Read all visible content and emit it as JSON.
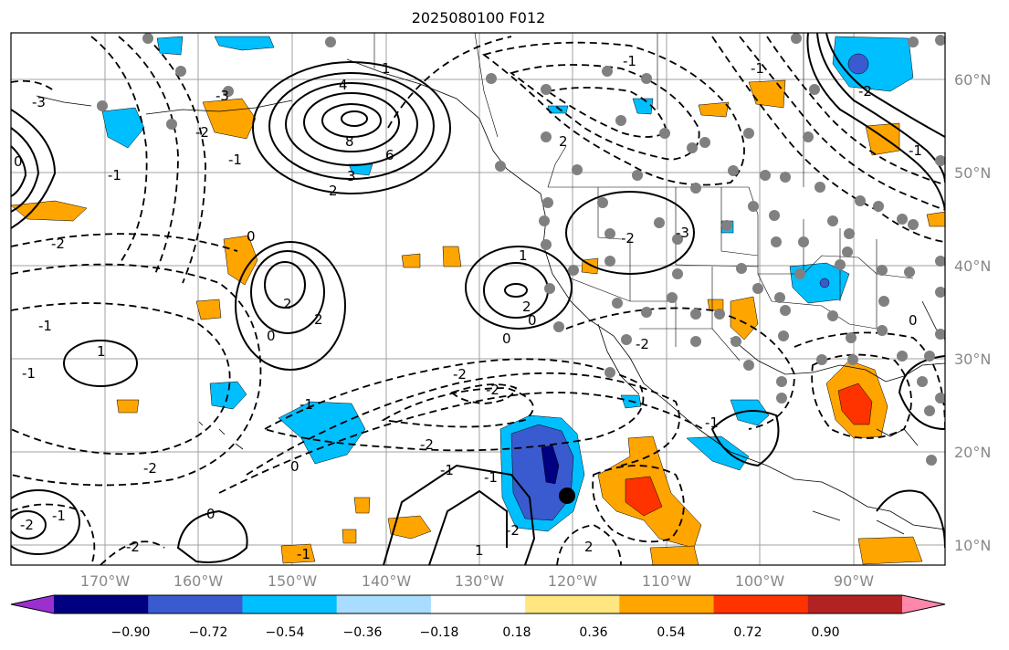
{
  "title": "2025080100 F012",
  "longitude_labels": [
    "170°W",
    "160°W",
    "150°W",
    "140°W",
    "130°W",
    "120°W",
    "110°W",
    "100°W",
    "90°W"
  ],
  "latitude_labels": [
    "60°N",
    "50°N",
    "40°N",
    "30°N",
    "20°N",
    "10°N"
  ],
  "colorbar": {
    "tick_labels": [
      "−0.90",
      "−0.72",
      "−0.54",
      "−0.36",
      "−0.18",
      "0.18",
      "0.36",
      "0.54",
      "0.72",
      "0.90"
    ],
    "colors": [
      "#9b30d0",
      "#000080",
      "#3a5bcf",
      "#00bfff",
      "#a8ddff",
      "#ffffff",
      "#ffe680",
      "#ffa500",
      "#ff3300",
      "#b22222",
      "#ff88aa"
    ],
    "extend": "both"
  },
  "contour_labels": [
    "4",
    "8",
    "6",
    "3",
    "2",
    "0",
    "-1",
    "-2",
    "-3",
    "1",
    "2",
    "0",
    "-2",
    "-3",
    "0",
    "-1",
    "1",
    "-1",
    "-1",
    "-2",
    "0",
    "-2",
    "-1",
    "2",
    "-2",
    "0",
    "-2",
    "0",
    "1",
    "-1",
    "0",
    "-2",
    "-1",
    "-1",
    "2",
    "-2",
    "1",
    "2",
    "-3",
    "-2",
    "-2",
    "-1",
    "0",
    "-1",
    "-2",
    "-1",
    "-2",
    "2",
    "-1",
    "-1"
  ]
}
